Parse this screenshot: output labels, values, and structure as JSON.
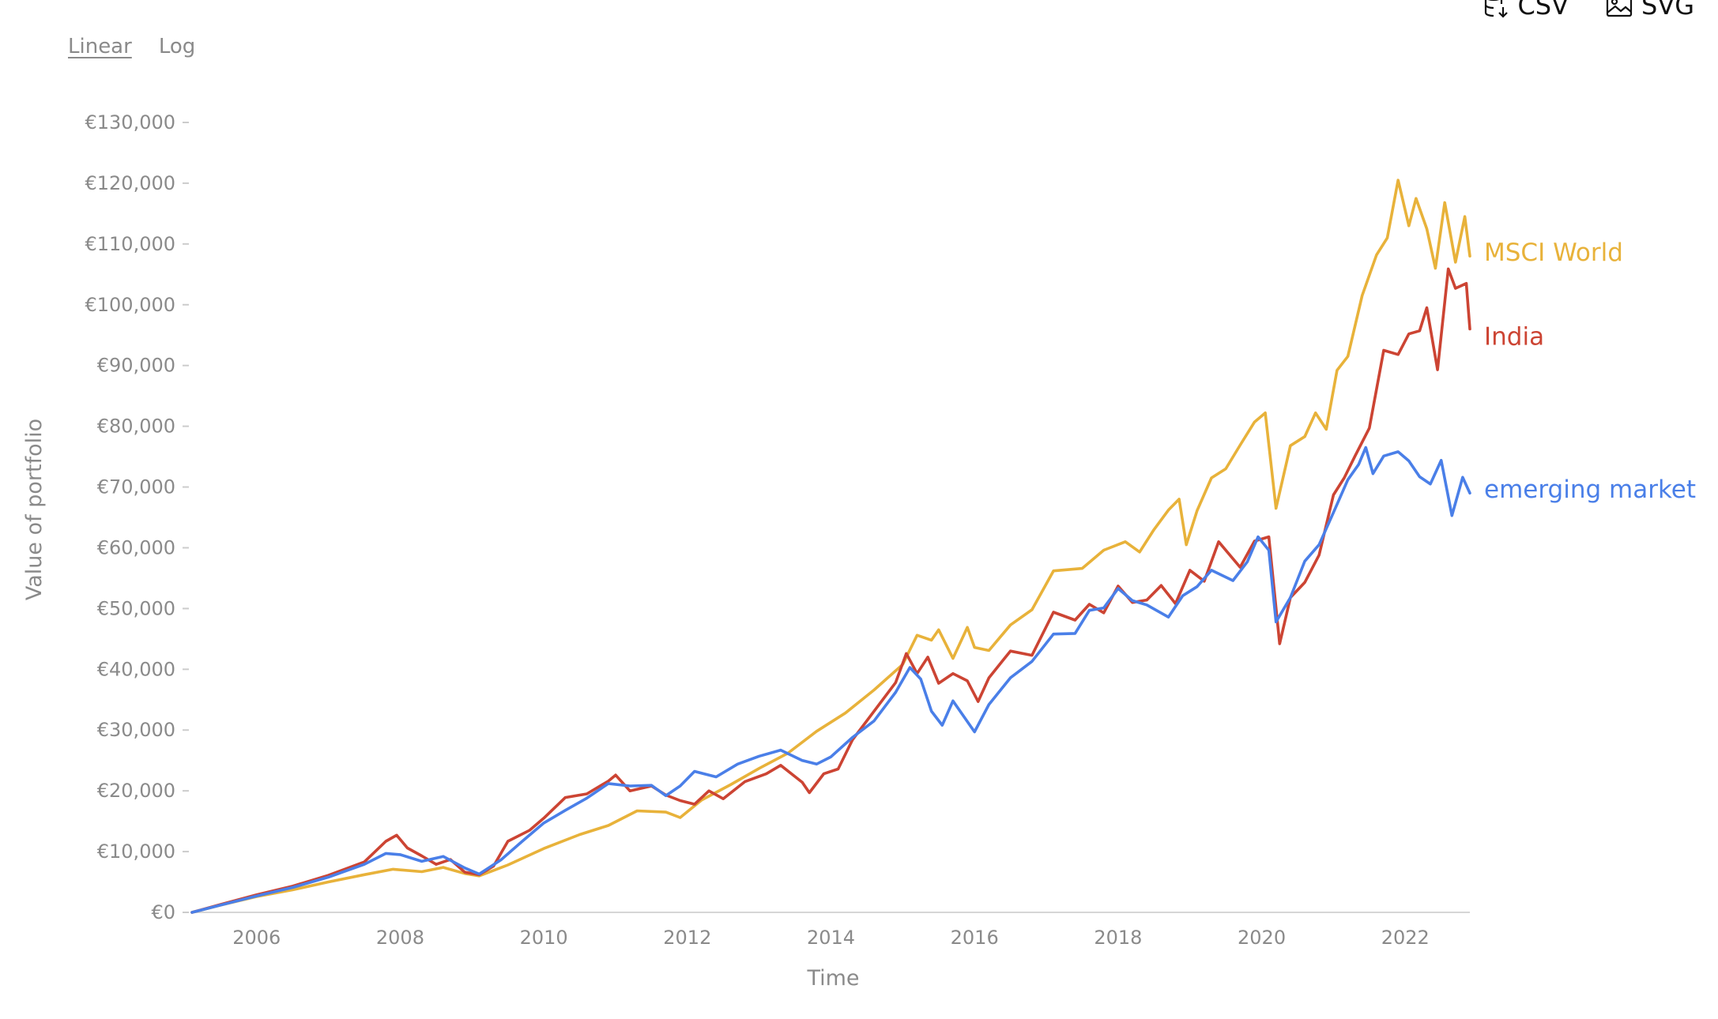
{
  "controls": {
    "linear_label": "Linear",
    "log_label": "Log",
    "csv_label": "CSV",
    "svg_label": "SVG",
    "csv_icon": "database-download-icon",
    "svg_icon": "image-icon"
  },
  "chart_data": {
    "type": "line",
    "title": "",
    "xlabel": "Time",
    "ylabel": "Value of portfolio",
    "x_ticks": [
      "2006",
      "2008",
      "2010",
      "2012",
      "2014",
      "2016",
      "2018",
      "2020",
      "2022"
    ],
    "y_ticks": [
      "€0",
      "€10,000",
      "€20,000",
      "€30,000",
      "€40,000",
      "€50,000",
      "€60,000",
      "€70,000",
      "€80,000",
      "€90,000",
      "€100,000",
      "€110,000",
      "€120,000",
      "€130,000"
    ],
    "xlim": [
      2005.1,
      2022.9
    ],
    "ylim": [
      0,
      130000
    ],
    "scale": "linear",
    "grid": false,
    "legend": "inline labels at line ends",
    "series": [
      {
        "name": "MSCI World",
        "color": "#E8B23A",
        "points": [
          [
            2005.1,
            0
          ],
          [
            2005.5,
            1200
          ],
          [
            2006,
            2600
          ],
          [
            2006.5,
            3700
          ],
          [
            2007,
            5000
          ],
          [
            2007.5,
            6200
          ],
          [
            2007.9,
            7100
          ],
          [
            2008.3,
            6700
          ],
          [
            2008.6,
            7400
          ],
          [
            2008.9,
            6400
          ],
          [
            2009.1,
            6000
          ],
          [
            2009.5,
            7800
          ],
          [
            2010,
            10500
          ],
          [
            2010.5,
            12800
          ],
          [
            2010.9,
            14300
          ],
          [
            2011.3,
            16700
          ],
          [
            2011.7,
            16500
          ],
          [
            2011.9,
            15600
          ],
          [
            2012.2,
            18500
          ],
          [
            2012.6,
            21000
          ],
          [
            2013,
            23700
          ],
          [
            2013.4,
            26200
          ],
          [
            2013.8,
            29800
          ],
          [
            2014.2,
            32800
          ],
          [
            2014.6,
            36600
          ],
          [
            2015.0,
            40800
          ],
          [
            2015.2,
            45600
          ],
          [
            2015.4,
            44800
          ],
          [
            2015.5,
            46500
          ],
          [
            2015.7,
            41800
          ],
          [
            2015.9,
            46900
          ],
          [
            2016.0,
            43600
          ],
          [
            2016.2,
            43100
          ],
          [
            2016.5,
            47300
          ],
          [
            2016.8,
            49800
          ],
          [
            2017.1,
            56200
          ],
          [
            2017.5,
            56600
          ],
          [
            2017.8,
            59600
          ],
          [
            2018.1,
            61000
          ],
          [
            2018.3,
            59300
          ],
          [
            2018.5,
            63000
          ],
          [
            2018.7,
            66200
          ],
          [
            2018.85,
            68000
          ],
          [
            2018.95,
            60500
          ],
          [
            2019.1,
            66100
          ],
          [
            2019.3,
            71500
          ],
          [
            2019.5,
            73000
          ],
          [
            2019.7,
            76900
          ],
          [
            2019.9,
            80700
          ],
          [
            2020.05,
            82200
          ],
          [
            2020.2,
            66500
          ],
          [
            2020.4,
            76800
          ],
          [
            2020.6,
            78300
          ],
          [
            2020.75,
            82200
          ],
          [
            2020.9,
            79500
          ],
          [
            2021.05,
            89200
          ],
          [
            2021.2,
            91500
          ],
          [
            2021.4,
            101500
          ],
          [
            2021.6,
            108200
          ],
          [
            2021.75,
            111000
          ],
          [
            2021.9,
            120500
          ],
          [
            2022.05,
            113000
          ],
          [
            2022.15,
            117500
          ],
          [
            2022.3,
            112500
          ],
          [
            2022.42,
            106000
          ],
          [
            2022.55,
            116800
          ],
          [
            2022.7,
            107000
          ],
          [
            2022.83,
            114500
          ],
          [
            2022.9,
            108000
          ]
        ]
      },
      {
        "name": "India",
        "color": "#CC4433",
        "points": [
          [
            2005.1,
            0
          ],
          [
            2005.5,
            1300
          ],
          [
            2006,
            2900
          ],
          [
            2006.5,
            4300
          ],
          [
            2007,
            6100
          ],
          [
            2007.5,
            8300
          ],
          [
            2007.8,
            11700
          ],
          [
            2007.95,
            12700
          ],
          [
            2008.1,
            10600
          ],
          [
            2008.3,
            9300
          ],
          [
            2008.5,
            7900
          ],
          [
            2008.7,
            8700
          ],
          [
            2008.9,
            6600
          ],
          [
            2009.1,
            6200
          ],
          [
            2009.3,
            7600
          ],
          [
            2009.5,
            11700
          ],
          [
            2009.8,
            13500
          ],
          [
            2010.0,
            15500
          ],
          [
            2010.3,
            18900
          ],
          [
            2010.6,
            19500
          ],
          [
            2010.9,
            21600
          ],
          [
            2011.0,
            22600
          ],
          [
            2011.2,
            20000
          ],
          [
            2011.5,
            20800
          ],
          [
            2011.7,
            19300
          ],
          [
            2011.9,
            18400
          ],
          [
            2012.1,
            17800
          ],
          [
            2012.3,
            20000
          ],
          [
            2012.5,
            18700
          ],
          [
            2012.8,
            21500
          ],
          [
            2013.1,
            22800
          ],
          [
            2013.3,
            24200
          ],
          [
            2013.6,
            21400
          ],
          [
            2013.7,
            19700
          ],
          [
            2013.9,
            22800
          ],
          [
            2014.1,
            23600
          ],
          [
            2014.3,
            28400
          ],
          [
            2014.6,
            33100
          ],
          [
            2014.9,
            37800
          ],
          [
            2015.05,
            42600
          ],
          [
            2015.2,
            39300
          ],
          [
            2015.35,
            42000
          ],
          [
            2015.5,
            37700
          ],
          [
            2015.7,
            39300
          ],
          [
            2015.9,
            38100
          ],
          [
            2016.05,
            34700
          ],
          [
            2016.2,
            38600
          ],
          [
            2016.5,
            43000
          ],
          [
            2016.8,
            42300
          ],
          [
            2017.1,
            49400
          ],
          [
            2017.4,
            48100
          ],
          [
            2017.6,
            50700
          ],
          [
            2017.8,
            49300
          ],
          [
            2018.0,
            53700
          ],
          [
            2018.2,
            51000
          ],
          [
            2018.4,
            51400
          ],
          [
            2018.6,
            53800
          ],
          [
            2018.8,
            50800
          ],
          [
            2019.0,
            56300
          ],
          [
            2019.2,
            54500
          ],
          [
            2019.4,
            61000
          ],
          [
            2019.7,
            56800
          ],
          [
            2019.9,
            61100
          ],
          [
            2020.1,
            61800
          ],
          [
            2020.25,
            44200
          ],
          [
            2020.4,
            51800
          ],
          [
            2020.6,
            54300
          ],
          [
            2020.8,
            58800
          ],
          [
            2021.0,
            68700
          ],
          [
            2021.15,
            71500
          ],
          [
            2021.3,
            75100
          ],
          [
            2021.5,
            79700
          ],
          [
            2021.7,
            92500
          ],
          [
            2021.9,
            91800
          ],
          [
            2022.05,
            95200
          ],
          [
            2022.2,
            95700
          ],
          [
            2022.3,
            99500
          ],
          [
            2022.45,
            89300
          ],
          [
            2022.6,
            105900
          ],
          [
            2022.7,
            102700
          ],
          [
            2022.85,
            103500
          ],
          [
            2022.9,
            96000
          ]
        ]
      },
      {
        "name": "emerging market",
        "color": "#4A7FE8",
        "points": [
          [
            2005.1,
            0
          ],
          [
            2005.5,
            1200
          ],
          [
            2006,
            2700
          ],
          [
            2006.5,
            4100
          ],
          [
            2007,
            5800
          ],
          [
            2007.5,
            7900
          ],
          [
            2007.8,
            9700
          ],
          [
            2008.0,
            9500
          ],
          [
            2008.3,
            8400
          ],
          [
            2008.6,
            9200
          ],
          [
            2008.9,
            7300
          ],
          [
            2009.1,
            6300
          ],
          [
            2009.4,
            8600
          ],
          [
            2009.7,
            11700
          ],
          [
            2010.0,
            14700
          ],
          [
            2010.3,
            16800
          ],
          [
            2010.6,
            18800
          ],
          [
            2010.9,
            21200
          ],
          [
            2011.2,
            20800
          ],
          [
            2011.5,
            20900
          ],
          [
            2011.7,
            19200
          ],
          [
            2011.9,
            20800
          ],
          [
            2012.1,
            23200
          ],
          [
            2012.4,
            22300
          ],
          [
            2012.7,
            24400
          ],
          [
            2013.0,
            25700
          ],
          [
            2013.3,
            26700
          ],
          [
            2013.6,
            25000
          ],
          [
            2013.8,
            24400
          ],
          [
            2014.0,
            25600
          ],
          [
            2014.3,
            28800
          ],
          [
            2014.6,
            31500
          ],
          [
            2014.9,
            36200
          ],
          [
            2015.1,
            40300
          ],
          [
            2015.25,
            38400
          ],
          [
            2015.4,
            33100
          ],
          [
            2015.55,
            30800
          ],
          [
            2015.7,
            34800
          ],
          [
            2016.0,
            29700
          ],
          [
            2016.2,
            34200
          ],
          [
            2016.5,
            38600
          ],
          [
            2016.8,
            41300
          ],
          [
            2017.1,
            45800
          ],
          [
            2017.4,
            45900
          ],
          [
            2017.6,
            49700
          ],
          [
            2017.8,
            50100
          ],
          [
            2018.0,
            53300
          ],
          [
            2018.2,
            51300
          ],
          [
            2018.4,
            50600
          ],
          [
            2018.7,
            48600
          ],
          [
            2018.9,
            52100
          ],
          [
            2019.1,
            53600
          ],
          [
            2019.3,
            56300
          ],
          [
            2019.6,
            54600
          ],
          [
            2019.8,
            57700
          ],
          [
            2019.95,
            61800
          ],
          [
            2020.1,
            59600
          ],
          [
            2020.2,
            47800
          ],
          [
            2020.4,
            51800
          ],
          [
            2020.6,
            57800
          ],
          [
            2020.8,
            60500
          ],
          [
            2021.0,
            65800
          ],
          [
            2021.2,
            71200
          ],
          [
            2021.35,
            73700
          ],
          [
            2021.45,
            76500
          ],
          [
            2021.55,
            72200
          ],
          [
            2021.7,
            75100
          ],
          [
            2021.9,
            75800
          ],
          [
            2022.05,
            74300
          ],
          [
            2022.2,
            71700
          ],
          [
            2022.35,
            70500
          ],
          [
            2022.5,
            74400
          ],
          [
            2022.65,
            65300
          ],
          [
            2022.8,
            71600
          ],
          [
            2022.9,
            69000
          ]
        ]
      }
    ]
  }
}
